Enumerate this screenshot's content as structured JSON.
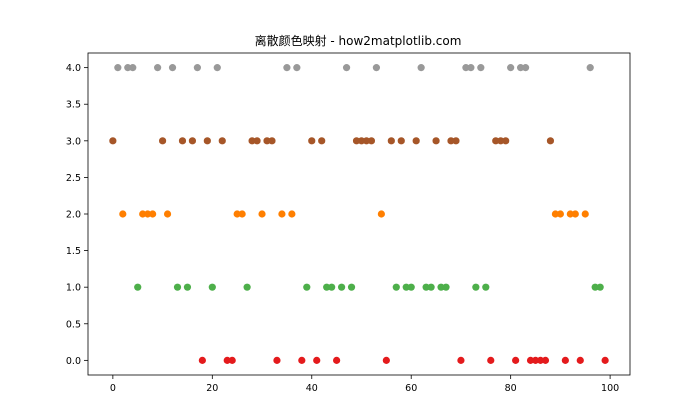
{
  "chart_data": {
    "type": "scatter",
    "title": "离散颜色映射 - how2matplotlib.com",
    "xlabel": "",
    "ylabel": "",
    "xlim": [
      -5,
      104
    ],
    "ylim": [
      -0.2,
      4.2
    ],
    "xticks": [
      0,
      20,
      40,
      60,
      80,
      100
    ],
    "yticks": [
      0.0,
      0.5,
      1.0,
      1.5,
      2.0,
      2.5,
      3.0,
      3.5,
      4.0
    ],
    "xtick_labels": [
      "0",
      "20",
      "40",
      "60",
      "80",
      "100"
    ],
    "ytick_labels": [
      "0.0",
      "0.5",
      "1.0",
      "1.5",
      "2.0",
      "2.5",
      "3.0",
      "3.5",
      "4.0"
    ],
    "grid": false,
    "categories": [
      {
        "value": 0,
        "color": "#e41a1c",
        "x": [
          18,
          23,
          24,
          33,
          38,
          41,
          45,
          55,
          70,
          76,
          81,
          84,
          85,
          86,
          87,
          91,
          94,
          99
        ]
      },
      {
        "value": 1,
        "color": "#4daf4a",
        "x": [
          5,
          13,
          15,
          20,
          27,
          39,
          43,
          44,
          46,
          48,
          57,
          59,
          60,
          63,
          64,
          66,
          67,
          73,
          75,
          97,
          98
        ]
      },
      {
        "value": 2,
        "color": "#ff7f00",
        "x": [
          2,
          6,
          7,
          8,
          11,
          25,
          26,
          30,
          34,
          36,
          54,
          89,
          90,
          92,
          93,
          95
        ]
      },
      {
        "value": 3,
        "color": "#a65628",
        "x": [
          0,
          10,
          14,
          16,
          19,
          22,
          28,
          29,
          31,
          32,
          40,
          42,
          49,
          50,
          51,
          52,
          56,
          58,
          61,
          65,
          68,
          69,
          77,
          78,
          79,
          88
        ]
      },
      {
        "value": 4,
        "color": "#999999",
        "x": [
          1,
          3,
          4,
          9,
          12,
          17,
          21,
          35,
          37,
          47,
          53,
          62,
          71,
          72,
          74,
          80,
          82,
          83,
          96
        ]
      }
    ]
  }
}
